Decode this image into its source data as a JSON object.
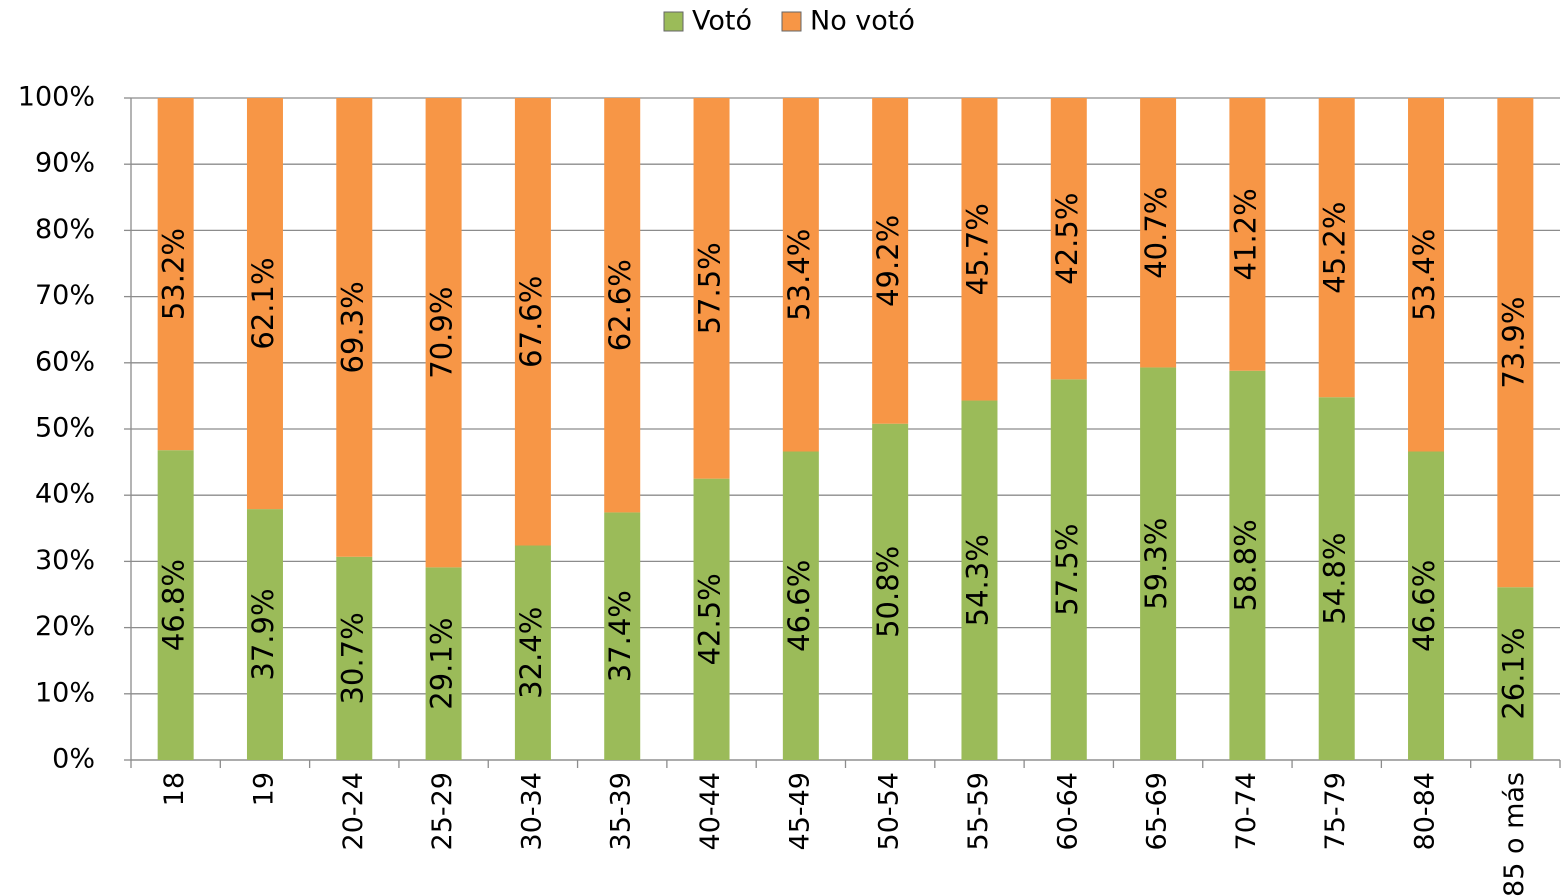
{
  "chart_data": {
    "type": "stacked_bar",
    "categories": [
      "18",
      "19",
      "20-24",
      "25-29",
      "30-34",
      "35-39",
      "40-44",
      "45-49",
      "50-54",
      "55-59",
      "60-64",
      "65-69",
      "70-74",
      "75-79",
      "80-84",
      "85 o más"
    ],
    "series": [
      {
        "name": "Votó",
        "color": "#9bbb59",
        "values": [
          46.8,
          37.9,
          30.7,
          29.1,
          32.4,
          37.4,
          42.5,
          46.6,
          50.8,
          54.3,
          57.5,
          59.3,
          58.8,
          54.8,
          46.6,
          26.1
        ],
        "value_labels": [
          "46.8%",
          "37.9%",
          "30.7%",
          "29.1%",
          "32.4%",
          "37.4%",
          "42.5%",
          "46.6%",
          "50.8%",
          "54.3%",
          "57.5%",
          "59.3%",
          "58.8%",
          "54.8%",
          "46.6%",
          "26.1%"
        ]
      },
      {
        "name": "No votó",
        "color": "#f79646",
        "values": [
          53.2,
          62.1,
          69.3,
          70.9,
          67.6,
          62.6,
          57.5,
          53.4,
          49.2,
          45.7,
          42.5,
          40.7,
          41.2,
          45.2,
          53.4,
          73.9
        ],
        "value_labels": [
          "53.2%",
          "62.1%",
          "69.3%",
          "70.9%",
          "67.6%",
          "62.6%",
          "57.5%",
          "53.4%",
          "49.2%",
          "45.7%",
          "42.5%",
          "40.7%",
          "41.2%",
          "45.2%",
          "53.4%",
          "73.9%"
        ]
      }
    ],
    "ylim": [
      0,
      100
    ],
    "yticks": [
      {
        "value": 0,
        "label": "0%"
      },
      {
        "value": 10,
        "label": "10%"
      },
      {
        "value": 20,
        "label": "20%"
      },
      {
        "value": 30,
        "label": "30%"
      },
      {
        "value": 40,
        "label": "40%"
      },
      {
        "value": 50,
        "label": "50%"
      },
      {
        "value": 60,
        "label": "60%"
      },
      {
        "value": 70,
        "label": "70%"
      },
      {
        "value": 80,
        "label": "80%"
      },
      {
        "value": 90,
        "label": "90%"
      },
      {
        "value": 100,
        "label": "100%"
      }
    ],
    "grid": true,
    "legend": "top"
  }
}
